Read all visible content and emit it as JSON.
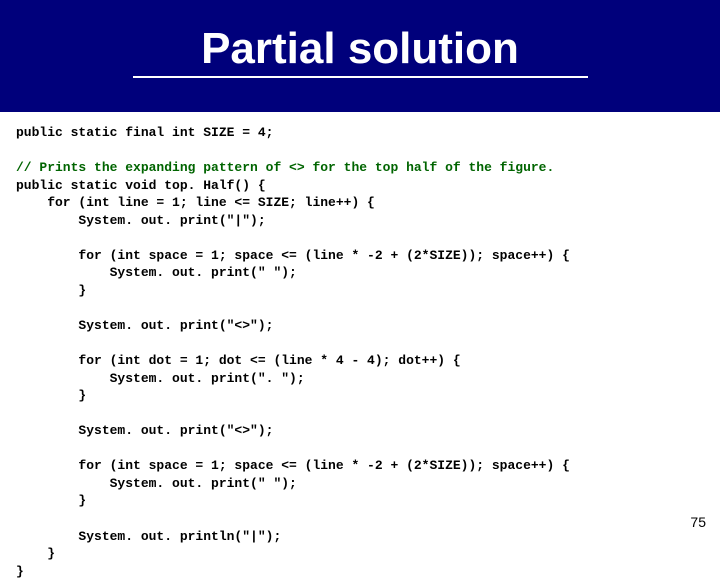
{
  "slide": {
    "title": "Partial solution",
    "title_color": "#ffffff",
    "band_color": "#00007b",
    "underline_color": "#ffffff",
    "title_fontsize": 44,
    "title_fontweight": 900,
    "page_number": "75",
    "background_color": "#ffffff"
  },
  "code": {
    "font_family": "Courier New",
    "font_size": 13,
    "text_color": "#000000",
    "comment_color": "#006400",
    "line01": "public static final int SIZE = 4;",
    "blank": "",
    "line02_comment": "// Prints the expanding pattern of <> for the top half of the figure.",
    "line03": "public static void top. Half() {",
    "line04": "    for (int line = 1; line <= SIZE; line++) {",
    "line05": "        System. out. print(\"|\");",
    "line06": "        for (int space = 1; space <= (line * -2 + (2*SIZE)); space++) {",
    "line07": "            System. out. print(\" \");",
    "line08": "        }",
    "line09": "        System. out. print(\"<>\");",
    "line10": "        for (int dot = 1; dot <= (line * 4 - 4); dot++) {",
    "line11": "            System. out. print(\". \");",
    "line12": "        }",
    "line13": "        System. out. print(\"<>\");",
    "line14": "        for (int space = 1; space <= (line * -2 + (2*SIZE)); space++) {",
    "line15": "            System. out. print(\" \");",
    "line16": "        }",
    "line17": "        System. out. println(\"|\");",
    "line18": "    }",
    "line19": "}"
  }
}
